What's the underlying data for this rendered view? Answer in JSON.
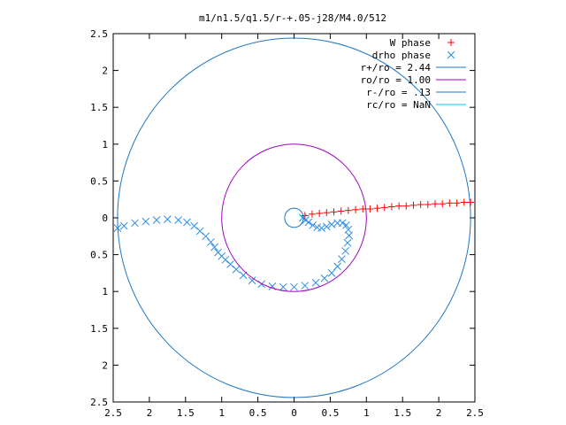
{
  "chart_data": {
    "type": "scatter",
    "title": "m1/n1.5/q1.5/r-+.05-j28/M4.0/512",
    "xlim": [
      -2.5,
      2.5
    ],
    "ylim": [
      -2.5,
      2.5
    ],
    "x_tick_labels": [
      "2.5",
      "2",
      "1.5",
      "1",
      "0.5",
      "0",
      "0.5",
      "1",
      "1.5",
      "2",
      "2.5"
    ],
    "y_tick_labels": [
      "2.5",
      "2",
      "1.5",
      "1",
      "0.5",
      "0",
      "0.5",
      "1",
      "1.5",
      "2",
      "2.5"
    ],
    "legend_position": "top-right",
    "series": [
      {
        "name": "W phase",
        "marker": "plus",
        "color": "#ff0000",
        "x": [
          0.15,
          0.25,
          0.35,
          0.45,
          0.55,
          0.65,
          0.75,
          0.85,
          0.95,
          1.05,
          1.15,
          1.25,
          1.35,
          1.45,
          1.55,
          1.65,
          1.75,
          1.85,
          1.95,
          2.05,
          2.15,
          2.25,
          2.35,
          2.44
        ],
        "y": [
          0.03,
          0.05,
          0.06,
          0.07,
          0.08,
          0.09,
          0.1,
          0.11,
          0.12,
          0.12,
          0.13,
          0.14,
          0.15,
          0.16,
          0.16,
          0.17,
          0.18,
          0.18,
          0.19,
          0.19,
          0.2,
          0.2,
          0.21,
          0.21
        ]
      },
      {
        "name": "drho phase",
        "marker": "cross",
        "color": "#2e8fe6",
        "x": [
          -2.44,
          -2.35,
          -2.2,
          -2.05,
          -1.9,
          -1.75,
          -1.6,
          -1.48,
          -1.38,
          -1.3,
          -1.22,
          -1.15,
          -1.1,
          -1.05,
          -1.0,
          -0.95,
          -0.88,
          -0.8,
          -0.7,
          -0.58,
          -0.45,
          -0.3,
          -0.15,
          0.0,
          0.15,
          0.3,
          0.42,
          0.52,
          0.6,
          0.66,
          0.71,
          0.74,
          0.76,
          0.75,
          0.72,
          0.67,
          0.6,
          0.52,
          0.45,
          0.38,
          0.32,
          0.26,
          0.2,
          0.16,
          0.12
        ],
        "y": [
          -0.14,
          -0.11,
          -0.07,
          -0.05,
          -0.03,
          -0.02,
          -0.03,
          -0.06,
          -0.11,
          -0.18,
          -0.25,
          -0.33,
          -0.4,
          -0.47,
          -0.52,
          -0.57,
          -0.63,
          -0.7,
          -0.78,
          -0.85,
          -0.9,
          -0.93,
          -0.94,
          -0.94,
          -0.92,
          -0.88,
          -0.82,
          -0.75,
          -0.66,
          -0.56,
          -0.45,
          -0.34,
          -0.24,
          -0.16,
          -0.1,
          -0.07,
          -0.07,
          -0.09,
          -0.12,
          -0.14,
          -0.13,
          -0.1,
          -0.06,
          -0.03,
          0.0
        ]
      },
      {
        "name": "r+/ro = 2.44",
        "type": "circle",
        "color": "#1f77c4",
        "center": [
          0,
          0
        ],
        "radius": 2.44
      },
      {
        "name": "ro/ro = 1.00",
        "type": "circle",
        "color": "#a000c0",
        "center": [
          0,
          0
        ],
        "radius": 1.0
      },
      {
        "name": "r-/ro =  .13",
        "type": "circle",
        "color": "#1f77c4",
        "center": [
          0,
          0
        ],
        "radius": 0.13
      },
      {
        "name": "rc/ro =  NaN",
        "type": "circle",
        "color": "#00c8e8",
        "center": [
          0,
          0
        ],
        "radius": null
      }
    ]
  }
}
